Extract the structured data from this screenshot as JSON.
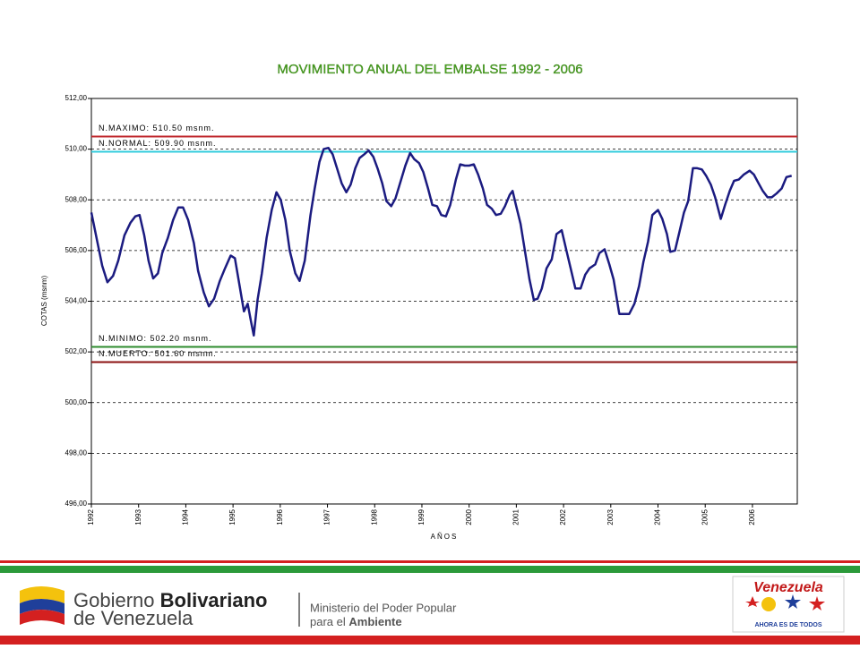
{
  "chart_data": {
    "type": "line",
    "title": "MOVIMIENTO ANUAL DEL EMBALSE 1992 - 2006",
    "y_label": "COTAS (msnm)",
    "x_label": "AÑOS",
    "color": "#1b1b80",
    "x": [
      1992.0,
      1992.13,
      1992.23,
      1992.34,
      1992.46,
      1992.57,
      1992.7,
      1992.83,
      1992.93,
      1993.02,
      1993.12,
      1993.21,
      1993.31,
      1993.41,
      1993.5,
      1993.62,
      1993.73,
      1993.84,
      1993.94,
      1994.05,
      1994.17,
      1994.26,
      1994.38,
      1994.49,
      1994.6,
      1994.72,
      1994.83,
      1994.95,
      1995.04,
      1995.14,
      1995.23,
      1995.31,
      1995.38,
      1995.44,
      1995.52,
      1995.61,
      1995.71,
      1995.82,
      1995.92,
      1996.01,
      1996.11,
      1996.2,
      1996.32,
      1996.41,
      1996.52,
      1996.64,
      1996.73,
      1996.83,
      1996.92,
      1997.02,
      1997.11,
      1997.21,
      1997.3,
      1997.4,
      1997.49,
      1997.59,
      1997.68,
      1997.78,
      1997.87,
      1997.97,
      1998.06,
      1998.16,
      1998.25,
      1998.35,
      1998.44,
      1998.56,
      1998.65,
      1998.75,
      1998.84,
      1998.94,
      1999.03,
      1999.13,
      1999.22,
      1999.32,
      1999.41,
      1999.51,
      1999.6,
      1999.72,
      1999.81,
      1999.91,
      2000.0,
      2000.1,
      2000.19,
      2000.29,
      2000.38,
      2000.48,
      2000.57,
      2000.67,
      2000.76,
      2000.86,
      2000.92,
      2000.99,
      2001.09,
      2001.18,
      2001.28,
      2001.37,
      2001.45,
      2001.54,
      2001.64,
      2001.75,
      2001.85,
      2001.96,
      2002.06,
      2002.15,
      2002.25,
      2002.36,
      2002.46,
      2002.55,
      2002.67,
      2002.76,
      2002.87,
      2002.97,
      2003.06,
      2003.18,
      2003.29,
      2003.39,
      2003.5,
      2003.6,
      2003.69,
      2003.79,
      2003.88,
      2004.0,
      2004.09,
      2004.19,
      2004.26,
      2004.36,
      2004.45,
      2004.55,
      2004.64,
      2004.74,
      2004.83,
      2004.93,
      2005.02,
      2005.12,
      2005.21,
      2005.33,
      2005.42,
      2005.52,
      2005.61,
      2005.71,
      2005.82,
      2005.94,
      2006.03,
      2006.13,
      2006.22,
      2006.32,
      2006.41,
      2006.51,
      2006.62,
      2006.72,
      2006.83
    ],
    "values": [
      507.5,
      506.3,
      505.4,
      504.75,
      505,
      505.6,
      506.6,
      507.1,
      507.35,
      507.4,
      506.6,
      505.6,
      504.9,
      505.1,
      505.9,
      506.5,
      507.2,
      507.7,
      507.7,
      507.2,
      506.3,
      505.2,
      504.35,
      503.8,
      504.1,
      504.8,
      505.3,
      505.8,
      505.7,
      504.6,
      503.6,
      503.9,
      503.2,
      502.65,
      504.05,
      505.1,
      506.5,
      507.6,
      508.3,
      508.0,
      507.2,
      506.0,
      505.1,
      504.8,
      505.6,
      507.4,
      508.45,
      509.5,
      510.0,
      510.05,
      509.8,
      509.2,
      508.65,
      508.3,
      508.6,
      509.25,
      509.65,
      509.8,
      509.95,
      509.7,
      509.25,
      508.65,
      507.95,
      507.75,
      508.05,
      508.8,
      509.35,
      509.85,
      509.6,
      509.45,
      509.1,
      508.45,
      507.8,
      507.75,
      507.4,
      507.35,
      507.8,
      508.8,
      509.4,
      509.35,
      509.35,
      509.4,
      509.0,
      508.45,
      507.8,
      507.65,
      507.4,
      507.45,
      507.75,
      508.2,
      508.35,
      507.8,
      507.05,
      506.0,
      504.85,
      504.05,
      504.1,
      504.5,
      505.3,
      505.65,
      506.65,
      506.8,
      506.0,
      505.3,
      504.5,
      504.5,
      505.05,
      505.3,
      505.45,
      505.9,
      506.05,
      505.45,
      504.85,
      503.5,
      503.5,
      503.5,
      503.9,
      504.6,
      505.55,
      506.35,
      507.4,
      507.6,
      507.25,
      506.65,
      505.95,
      506.0,
      506.7,
      507.5,
      507.95,
      509.25,
      509.25,
      509.2,
      508.95,
      508.6,
      508.1,
      507.25,
      507.8,
      508.35,
      508.75,
      508.8,
      509.0,
      509.15,
      509.0,
      508.65,
      508.35,
      508.1,
      508.1,
      508.25,
      508.45,
      508.9,
      508.95
    ],
    "xlim": [
      1992,
      2006.95
    ],
    "xticks": [
      1992,
      1993,
      1994,
      1995,
      1996,
      1997,
      1998,
      1999,
      2000,
      2001,
      2002,
      2003,
      2004,
      2005,
      2006
    ],
    "ylim": [
      496,
      512
    ],
    "yticks": [
      {
        "value": 496,
        "label": "496,00"
      },
      {
        "value": 498,
        "label": "498,00"
      },
      {
        "value": 500,
        "label": "500,00"
      },
      {
        "value": 502,
        "label": "502,00"
      },
      {
        "value": 504,
        "label": "504,00"
      },
      {
        "value": 506,
        "label": "506,00"
      },
      {
        "value": 508,
        "label": "508,00"
      },
      {
        "value": 510,
        "label": "510,00"
      },
      {
        "value": 512,
        "label": "512,00"
      }
    ],
    "grid": true,
    "reference_lines": [
      {
        "value": 510.5,
        "label": "N.MAXIMO: 510.50 msnm.",
        "color": "#c0282d"
      },
      {
        "value": 509.9,
        "label": "N.NORMAL: 509.90 msnm.",
        "color": "#33ccdd"
      },
      {
        "value": 502.2,
        "label": "N.MINIMO: 502.20 msnm.",
        "color": "#2e8b2e"
      },
      {
        "value": 501.6,
        "label": "N.MUERTO: 501.60 msnm.",
        "color": "#8b1010"
      }
    ]
  },
  "footer": {
    "gov_1": "Gobierno",
    "gov_2": "Bolivariano",
    "gov_3": "de Venezuela",
    "ministry_1": "Ministerio del Poder Popular",
    "ministry_2": "para el",
    "ministry_3": "Ambiente",
    "brand": "Venezuela",
    "slogan": "AHORA ES DE TODOS"
  }
}
